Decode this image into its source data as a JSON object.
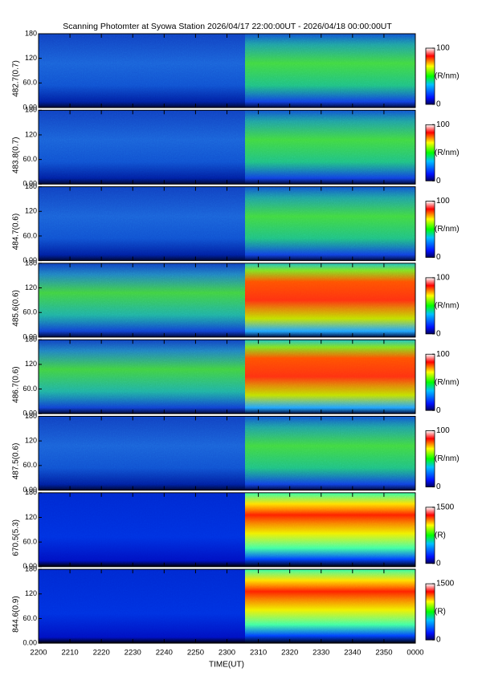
{
  "chart_data": {
    "type": "heatmap",
    "title": "Scanning Photomter at Syowa Station 2026/04/17 22:00:00UT - 2026/04/18 00:00:00UT",
    "xlabel": "TIME(UT)",
    "xticks": [
      "2200",
      "2210",
      "2220",
      "2230",
      "2240",
      "2250",
      "2300",
      "2310",
      "2320",
      "2330",
      "2340",
      "2350",
      "0000"
    ],
    "ylim": [
      0,
      180
    ],
    "yticks": [
      {
        "value": 0,
        "label": "0.00"
      },
      {
        "value": 60,
        "label": "60.0"
      },
      120,
      180
    ],
    "panels": [
      {
        "ylabel": "482.7(0.7)",
        "clim": [
          0,
          100
        ],
        "cunit": "(R/nm)"
      },
      {
        "ylabel": "483.8(0.7)",
        "clim": [
          0,
          100
        ],
        "cunit": "(R/nm)"
      },
      {
        "ylabel": "484.7(0.6)",
        "clim": [
          0,
          100
        ],
        "cunit": "(R/nm)"
      },
      {
        "ylabel": "485.6(0.6)",
        "clim": [
          0,
          100
        ],
        "cunit": "(R/nm)"
      },
      {
        "ylabel": "486.7(0.6)",
        "clim": [
          0,
          100
        ],
        "cunit": "(R/nm)"
      },
      {
        "ylabel": "487.5(0.6)",
        "clim": [
          0,
          100
        ],
        "cunit": "(R/nm)"
      },
      {
        "ylabel": "670.5(5.3)",
        "clim": [
          0,
          1500
        ],
        "cunit": "(R)"
      },
      {
        "ylabel": "844.6(0.9)",
        "clim": [
          0,
          1500
        ],
        "cunit": "(R)"
      }
    ]
  }
}
